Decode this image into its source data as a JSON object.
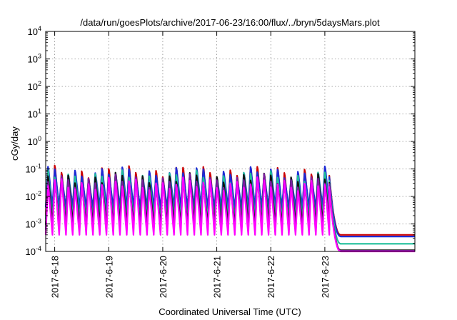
{
  "chart_data": {
    "type": "line",
    "title": "/data/run/goesPlots/archive/2017-06-23/16:00/flux/../bryn/5daysMars.plot",
    "xlabel": "Coordinated Universal Time (UTC)",
    "ylabel": "cGy/day",
    "yscale": "log",
    "ylim": [
      0.0001,
      10000
    ],
    "xlim": [
      "2017-06-17T20:00",
      "2017-06-24T16:00"
    ],
    "grid": true,
    "legend": "none",
    "x_ticks": [
      "2017-6-18",
      "2017-6-19",
      "2017-6-20",
      "2017-6-21",
      "2017-6-22",
      "2017-6-23"
    ],
    "y_ticks": [
      {
        "base": "10",
        "exp": "-4"
      },
      {
        "base": "10",
        "exp": "-3"
      },
      {
        "base": "10",
        "exp": "-2"
      },
      {
        "base": "10",
        "exp": "-1"
      },
      {
        "base": "10",
        "exp": "0"
      },
      {
        "base": "10",
        "exp": "1"
      },
      {
        "base": "10",
        "exp": "2"
      },
      {
        "base": "10",
        "exp": "3"
      },
      {
        "base": "10",
        "exp": "4"
      }
    ],
    "cycle_hours": 3,
    "drop_time": "2017-06-23T02:00",
    "series": [
      {
        "color": "#cc0000",
        "peak": 0.09,
        "trough": 0.002,
        "final": 0.0004
      },
      {
        "color": "#1d2bd6",
        "peak": 0.08,
        "trough": 0.004,
        "final": 0.00035
      },
      {
        "color": "#1fbf9a",
        "peak": 0.06,
        "trough": 0.0015,
        "final": 0.00019
      },
      {
        "color": "#111111",
        "peak": 0.05,
        "trough": 0.0009,
        "final": 0.00011
      },
      {
        "color": "#7a1fa0",
        "peak": 0.045,
        "trough": 0.0006,
        "final": 0.000105
      },
      {
        "color": "#ff00ff",
        "peak": 0.035,
        "trough": 0.0004,
        "final": 0.0001
      }
    ]
  }
}
